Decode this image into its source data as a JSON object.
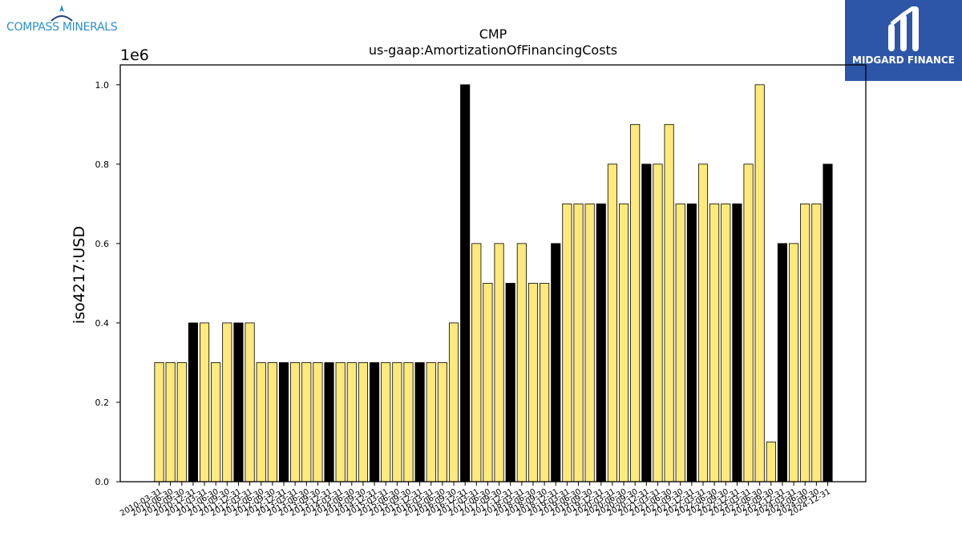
{
  "branding": {
    "left_logo_text": "COMPASS MINERALS",
    "right_logo_text": "MIDGARD FINANCE"
  },
  "colors": {
    "bar_default": "#ffe97a",
    "bar_highlight": "#000000",
    "bar_edge": "#000000",
    "right_logo_bg": "#2e56a8",
    "left_logo_text": "#2a8fd0"
  },
  "chart_data": {
    "type": "bar",
    "title": "CMP",
    "subtitle": "us-gaap:AmortizationOfFinancingCosts",
    "ylabel": "iso4217:USD",
    "xlabel": "",
    "y_scale_label": "1e6",
    "ylim": [
      0,
      1.05
    ],
    "yticks": [
      0.0,
      0.2,
      0.4,
      0.6,
      0.8,
      1.0
    ],
    "ytick_labels": [
      "0.0",
      "0.2",
      "0.4",
      "0.6",
      "0.8",
      "1.0"
    ],
    "grid": false,
    "legend": "none",
    "categories": [
      "2010-03-31",
      "2010-06-30",
      "2010-09-30",
      "2010-12-31",
      "2011-03-31",
      "2011-06-30",
      "2011-09-30",
      "2011-12-31",
      "2012-03-31",
      "2012-06-30",
      "2012-09-30",
      "2012-12-31",
      "2013-03-31",
      "2013-06-30",
      "2013-09-30",
      "2013-12-31",
      "2014-03-31",
      "2014-06-30",
      "2014-09-30",
      "2014-12-31",
      "2015-03-31",
      "2015-06-30",
      "2015-09-30",
      "2015-12-31",
      "2016-03-31",
      "2016-06-30",
      "2016-09-30",
      "2016-12-31",
      "2017-03-31",
      "2017-06-30",
      "2017-09-30",
      "2017-12-31",
      "2018-03-31",
      "2018-06-30",
      "2018-09-30",
      "2018-12-31",
      "2019-03-31",
      "2019-06-30",
      "2019-09-30",
      "2019-12-31",
      "2020-03-31",
      "2020-06-30",
      "2020-09-30",
      "2020-12-31",
      "2021-03-31",
      "2021-06-30",
      "2021-09-30",
      "2021-12-31",
      "2022-03-31",
      "2022-06-30",
      "2022-09-30",
      "2022-12-31",
      "2023-03-31",
      "2023-06-30",
      "2023-09-30",
      "2023-12-31",
      "2024-03-31",
      "2024-06-30",
      "2024-09-30",
      "2024-12-31"
    ],
    "values": [
      0.3,
      0.3,
      0.3,
      0.4,
      0.4,
      0.3,
      0.4,
      0.4,
      0.4,
      0.3,
      0.3,
      0.3,
      0.3,
      0.3,
      0.3,
      0.3,
      0.3,
      0.3,
      0.3,
      0.3,
      0.3,
      0.3,
      0.3,
      0.3,
      0.3,
      0.3,
      0.4,
      1.0,
      0.6,
      0.5,
      0.6,
      0.5,
      0.6,
      0.5,
      0.5,
      0.6,
      0.7,
      0.7,
      0.7,
      0.7,
      0.8,
      0.7,
      0.9,
      0.8,
      0.8,
      0.9,
      0.7,
      0.7,
      0.8,
      0.7,
      0.7,
      0.7,
      0.8,
      1.0,
      0.1,
      0.6,
      0.6,
      0.7,
      0.7,
      0.8
    ],
    "highlight_indices": [
      3,
      7,
      11,
      15,
      19,
      23,
      27,
      31,
      35,
      39,
      43,
      47,
      51,
      55,
      59
    ]
  }
}
